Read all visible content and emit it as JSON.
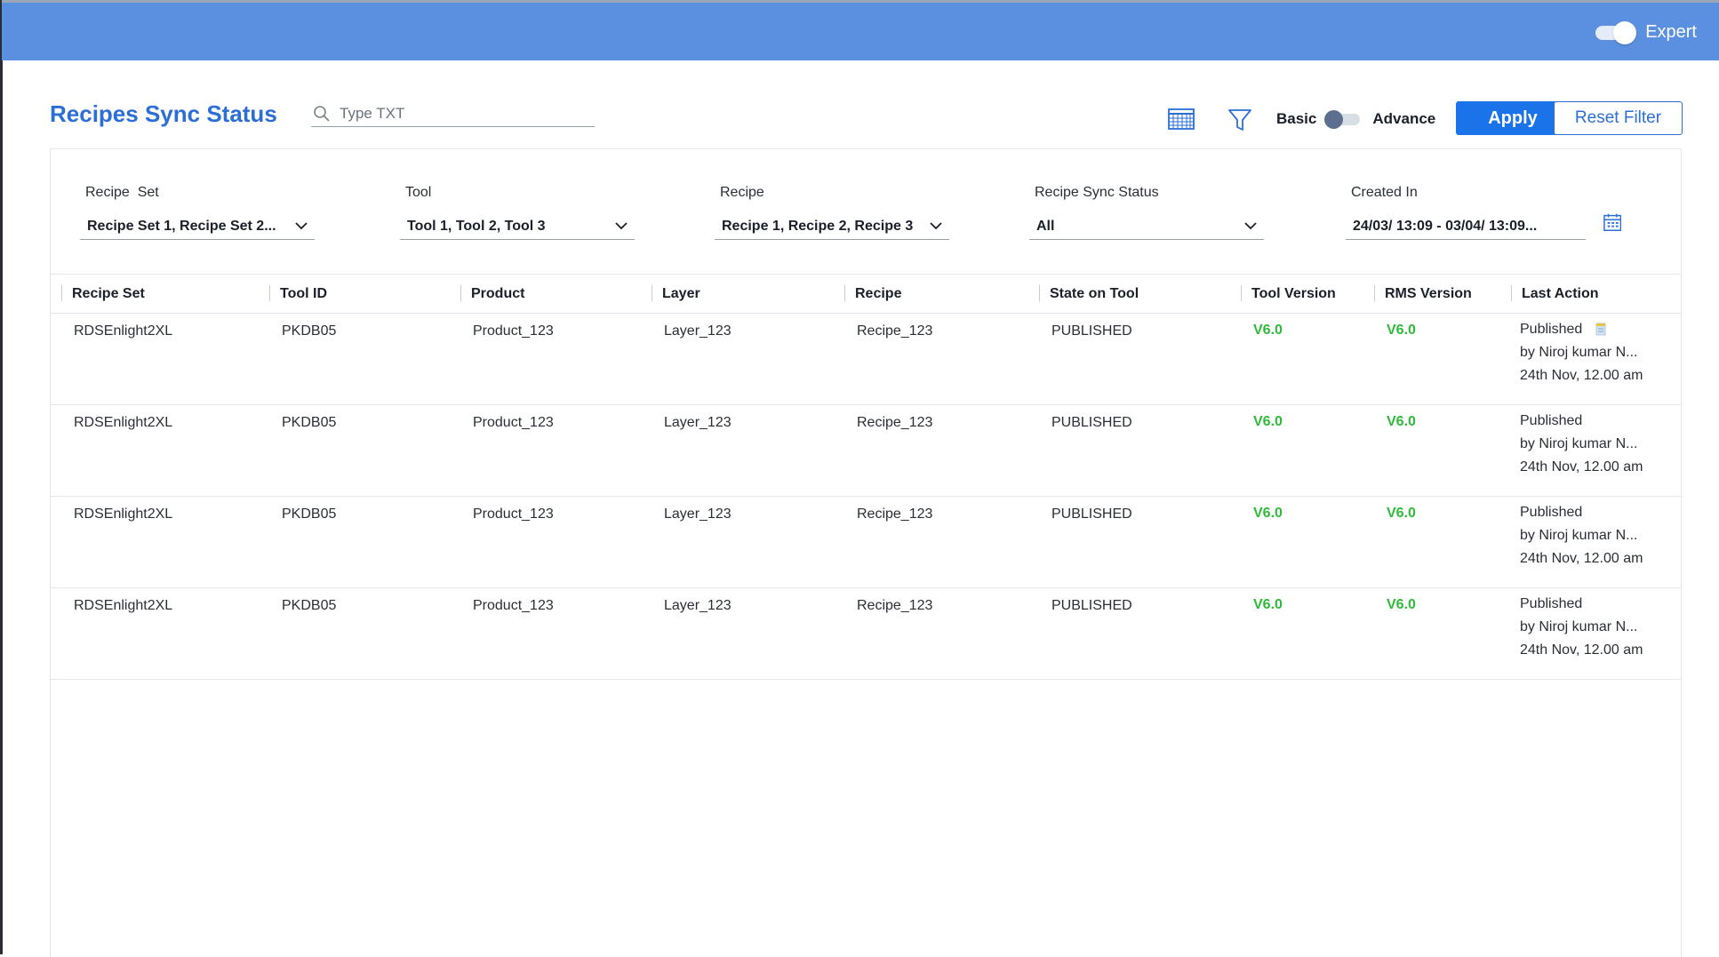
{
  "header": {
    "expert_label": "Expert",
    "expert_on": true
  },
  "page": {
    "title": "Recipes Sync Status"
  },
  "search": {
    "placeholder": "Type TXT"
  },
  "toolbar": {
    "basic_label": "Basic",
    "advance_label": "Advance",
    "apply_label": "Apply",
    "reset_label": "Reset Filter"
  },
  "filters": {
    "recipe_set": {
      "label": "Recipe  Set",
      "value": "Recipe Set 1, Recipe Set 2..."
    },
    "tool": {
      "label": "Tool",
      "value": "Tool 1, Tool 2, Tool 3"
    },
    "recipe": {
      "label": "Recipe",
      "value": "Recipe 1, Recipe 2, Recipe 3"
    },
    "sync_status": {
      "label": "Recipe Sync Status",
      "value": "All"
    },
    "created_in": {
      "label": "Created In",
      "value": "24/03/ 13:09 - 03/04/ 13:09..."
    }
  },
  "table": {
    "columns": [
      "Recipe Set",
      "Tool ID",
      "Product",
      "Layer",
      "Recipe",
      "State on Tool",
      "Tool Version",
      "RMS Version",
      "Last Action"
    ],
    "rows": [
      {
        "recipe_set": "RDSEnlight2XL",
        "tool_id": "PKDB05",
        "product": "Product_123",
        "layer": "Layer_123",
        "recipe": "Recipe_123",
        "state": "PUBLISHED",
        "tool_version": "V6.0",
        "rms_version": "V6.0",
        "last_action": "Published",
        "by": "by Niroj kumar N...",
        "when": "24th Nov, 12.00 am"
      },
      {
        "recipe_set": "RDSEnlight2XL",
        "tool_id": "PKDB05",
        "product": "Product_123",
        "layer": "Layer_123",
        "recipe": "Recipe_123",
        "state": "PUBLISHED",
        "tool_version": "V6.0",
        "rms_version": "V6.0",
        "last_action": "Published",
        "by": "by Niroj kumar N...",
        "when": "24th Nov, 12.00 am"
      },
      {
        "recipe_set": "RDSEnlight2XL",
        "tool_id": "PKDB05",
        "product": "Product_123",
        "layer": "Layer_123",
        "recipe": "Recipe_123",
        "state": "PUBLISHED",
        "tool_version": "V6.0",
        "rms_version": "V6.0",
        "last_action": "Published",
        "by": "by Niroj kumar N...",
        "when": "24th Nov, 12.00 am"
      },
      {
        "recipe_set": "RDSEnlight2XL",
        "tool_id": "PKDB05",
        "product": "Product_123",
        "layer": "Layer_123",
        "recipe": "Recipe_123",
        "state": "PUBLISHED",
        "tool_version": "V6.0",
        "rms_version": "V6.0",
        "last_action": "Published",
        "by": "by Niroj kumar N...",
        "when": "24th Nov, 12.00 am"
      }
    ]
  },
  "colors": {
    "brand": "#2b6ed6",
    "topbar": "#5b8fe0",
    "version_green": "#2fbb3a",
    "apply": "#1a73e8"
  },
  "icons": [
    "search-icon",
    "grid-view-icon",
    "filter-icon",
    "chevron-down-icon",
    "calendar-icon",
    "note-icon"
  ]
}
